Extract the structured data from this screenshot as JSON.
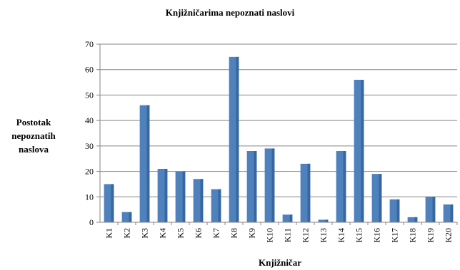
{
  "chart_data": {
    "type": "bar",
    "title": "Knjižničarima nepoznati naslovi",
    "xlabel": "Knjižničar",
    "ylabel_lines": [
      "Postotak",
      "nepoznatih",
      "naslova"
    ],
    "categories": [
      "K1",
      "K2",
      "K3",
      "K4",
      "K5",
      "K6",
      "K7",
      "K8",
      "K9",
      "K10",
      "K11",
      "K12",
      "K13",
      "K14",
      "K15",
      "K16",
      "K17",
      "K18",
      "K19",
      "K20"
    ],
    "values": [
      15,
      4,
      46,
      21,
      20,
      17,
      13,
      65,
      28,
      29,
      3,
      23,
      1,
      28,
      56,
      19,
      9,
      2,
      10,
      7
    ],
    "ylim": [
      0,
      70
    ],
    "yticks": [
      0,
      10,
      20,
      30,
      40,
      50,
      60,
      70
    ],
    "grid": true,
    "bar_color": "#4f81bd",
    "bar_dark_color": "#2e5f94",
    "grid_color": "#868686"
  }
}
